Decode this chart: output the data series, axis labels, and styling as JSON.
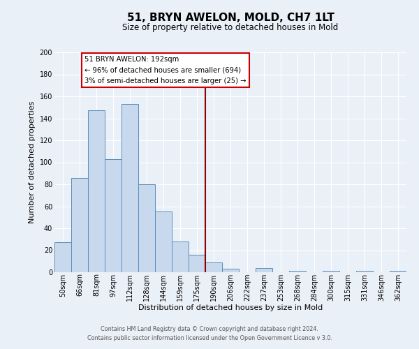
{
  "title": "51, BRYN AWELON, MOLD, CH7 1LT",
  "subtitle": "Size of property relative to detached houses in Mold",
  "xlabel": "Distribution of detached houses by size in Mold",
  "ylabel": "Number of detached properties",
  "bar_labels": [
    "50sqm",
    "66sqm",
    "81sqm",
    "97sqm",
    "112sqm",
    "128sqm",
    "144sqm",
    "159sqm",
    "175sqm",
    "190sqm",
    "206sqm",
    "222sqm",
    "237sqm",
    "253sqm",
    "268sqm",
    "284sqm",
    "300sqm",
    "315sqm",
    "331sqm",
    "346sqm",
    "362sqm"
  ],
  "bar_values": [
    27,
    86,
    147,
    103,
    153,
    80,
    55,
    28,
    16,
    9,
    3,
    0,
    4,
    0,
    1,
    0,
    1,
    0,
    1,
    0,
    1
  ],
  "bar_color": "#c8d9ee",
  "bar_edge_color": "#5b8db8",
  "highlight_line_color": "#8b0000",
  "annotation_text_line1": "51 BRYN AWELON: 192sqm",
  "annotation_text_line2": "← 96% of detached houses are smaller (694)",
  "annotation_text_line3": "3% of semi-detached houses are larger (25) →",
  "annotation_box_facecolor": "#ffffff",
  "annotation_box_edgecolor": "#cc0000",
  "ylim": [
    0,
    200
  ],
  "yticks": [
    0,
    20,
    40,
    60,
    80,
    100,
    120,
    140,
    160,
    180,
    200
  ],
  "footer_line1": "Contains HM Land Registry data © Crown copyright and database right 2024.",
  "footer_line2": "Contains public sector information licensed under the Open Government Licence v 3.0.",
  "bg_color": "#eaf0f8",
  "grid_color": "#ffffff",
  "title_fontsize": 11,
  "subtitle_fontsize": 8.5,
  "ylabel_fontsize": 8,
  "xlabel_fontsize": 8,
  "tick_fontsize": 7,
  "footer_fontsize": 5.8
}
